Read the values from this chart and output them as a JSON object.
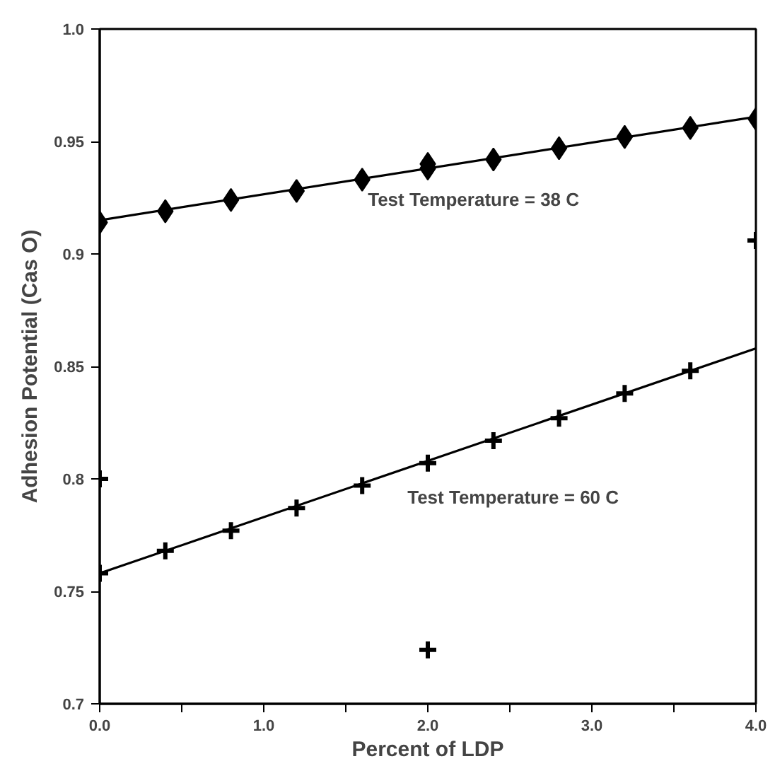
{
  "chart_data": {
    "type": "scatter",
    "xlabel": "Percent of LDP",
    "ylabel": "Adhesion Potential (Cas O)",
    "xlim": [
      0,
      4
    ],
    "ylim": [
      0.7,
      1.0
    ],
    "xticks": [
      {
        "value": 0,
        "label": "0.0"
      },
      {
        "value": 0.5,
        "label": null
      },
      {
        "value": 1,
        "label": "1.0"
      },
      {
        "value": 1.5,
        "label": null
      },
      {
        "value": 2,
        "label": "2.0"
      },
      {
        "value": 2.5,
        "label": null
      },
      {
        "value": 3,
        "label": "3.0"
      },
      {
        "value": 3.5,
        "label": null
      },
      {
        "value": 4,
        "label": "4.0"
      }
    ],
    "yticks": [
      0.7,
      0.75,
      0.8,
      0.85,
      0.9,
      0.95,
      {
        "value": 1.0,
        "label": "1.0"
      }
    ],
    "grid": false,
    "series": [
      {
        "name": "Test Temperature = 38 C",
        "marker": "diamond",
        "color": "#000000",
        "x": [
          0,
          0.4,
          0.8,
          1.2,
          1.6,
          2.0,
          2.0,
          2.4,
          2.8,
          3.2,
          3.6,
          4.0
        ],
        "values": [
          0.914,
          0.919,
          0.924,
          0.928,
          0.933,
          0.938,
          0.94,
          0.942,
          0.947,
          0.952,
          0.956,
          0.96
        ]
      },
      {
        "type": "line",
        "marker": "none",
        "color": "#000000",
        "x": [
          0,
          4
        ],
        "values": [
          0.915,
          0.961
        ]
      },
      {
        "name": "Test Temperature = 60 C",
        "marker": "cross",
        "color": "#000000",
        "x": [
          0,
          0,
          0.4,
          0.8,
          1.2,
          1.6,
          2.0,
          2.0,
          2.4,
          2.8,
          3.2,
          3.6,
          4.0
        ],
        "values": [
          0.758,
          0.8,
          0.768,
          0.777,
          0.787,
          0.797,
          0.807,
          0.724,
          0.817,
          0.827,
          0.838,
          0.848,
          0.906
        ]
      },
      {
        "type": "line",
        "marker": "none",
        "color": "#000000",
        "x": [
          0,
          4
        ],
        "values": [
          0.758,
          0.858
        ]
      }
    ]
  }
}
